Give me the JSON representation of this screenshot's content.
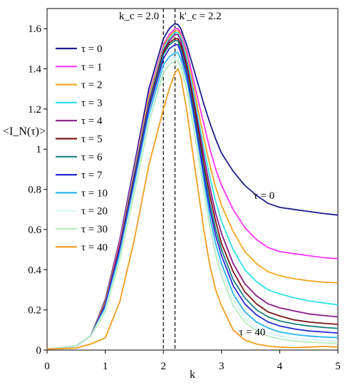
{
  "chart_data": {
    "type": "line",
    "xlabel": "k",
    "ylabel": "<I_N(τ)>",
    "xlim": [
      0,
      5
    ],
    "ylim": [
      0,
      1.7
    ],
    "x_ticks": [
      "0",
      "1",
      "2",
      "3",
      "4",
      "5"
    ],
    "y_ticks": [
      "0",
      "0.2",
      "0.4",
      "0.6",
      "0.8",
      "1",
      "1.2",
      "1.4",
      "1.6"
    ],
    "grid": false,
    "legend_position": "top-left",
    "vlines": [
      {
        "x": 2.0,
        "label": "k_c = 2.0"
      },
      {
        "x": 2.2,
        "label": "k'_c = 2.2"
      }
    ],
    "annotations": [
      {
        "text": "τ = 0",
        "x": 3.55,
        "y": 0.77
      },
      {
        "text": "τ = 40",
        "x": 3.3,
        "y": 0.09
      }
    ],
    "x": [
      0,
      0.5,
      0.75,
      1.0,
      1.25,
      1.5,
      1.75,
      2.0,
      2.1,
      2.2,
      2.25,
      2.3,
      2.4,
      2.5,
      2.6,
      2.7,
      2.8,
      2.9,
      3.0,
      3.2,
      3.4,
      3.6,
      3.8,
      4.0,
      4.25,
      4.5,
      4.75,
      5.0
    ],
    "series": [
      {
        "name": "τ = 0",
        "color": "#1c1c8c",
        "values": [
          0.005,
          0.02,
          0.07,
          0.25,
          0.55,
          0.92,
          1.3,
          1.55,
          1.6,
          1.625,
          1.62,
          1.6,
          1.52,
          1.42,
          1.32,
          1.22,
          1.13,
          1.05,
          0.98,
          0.89,
          0.82,
          0.77,
          0.73,
          0.71,
          0.7,
          0.69,
          0.68,
          0.672
        ]
      },
      {
        "name": "τ = 1",
        "color": "#ff33ff",
        "values": [
          0.005,
          0.02,
          0.07,
          0.24,
          0.54,
          0.9,
          1.27,
          1.52,
          1.57,
          1.6,
          1.6,
          1.58,
          1.49,
          1.37,
          1.24,
          1.12,
          1.0,
          0.9,
          0.82,
          0.7,
          0.61,
          0.55,
          0.51,
          0.49,
          0.48,
          0.47,
          0.46,
          0.455
        ]
      },
      {
        "name": "τ = 2",
        "color": "#f5a623",
        "values": [
          0.005,
          0.02,
          0.07,
          0.24,
          0.53,
          0.89,
          1.26,
          1.51,
          1.56,
          1.59,
          1.59,
          1.57,
          1.47,
          1.34,
          1.19,
          1.05,
          0.92,
          0.81,
          0.72,
          0.59,
          0.49,
          0.43,
          0.39,
          0.37,
          0.355,
          0.345,
          0.338,
          0.335
        ]
      },
      {
        "name": "τ = 3",
        "color": "#33e0e8",
        "values": [
          0.005,
          0.02,
          0.07,
          0.23,
          0.52,
          0.88,
          1.24,
          1.5,
          1.55,
          1.58,
          1.58,
          1.56,
          1.45,
          1.31,
          1.15,
          1.0,
          0.86,
          0.74,
          0.64,
          0.5,
          0.4,
          0.34,
          0.3,
          0.28,
          0.26,
          0.245,
          0.235,
          0.225
        ]
      },
      {
        "name": "τ = 4",
        "color": "#8b1a8b",
        "values": [
          0.005,
          0.02,
          0.07,
          0.23,
          0.52,
          0.87,
          1.23,
          1.49,
          1.54,
          1.57,
          1.57,
          1.54,
          1.43,
          1.28,
          1.12,
          0.96,
          0.81,
          0.68,
          0.58,
          0.43,
          0.33,
          0.27,
          0.23,
          0.21,
          0.195,
          0.18,
          0.172,
          0.165
        ]
      },
      {
        "name": "τ = 5",
        "color": "#7a1414",
        "values": [
          0.005,
          0.02,
          0.07,
          0.22,
          0.51,
          0.86,
          1.22,
          1.48,
          1.53,
          1.55,
          1.55,
          1.52,
          1.41,
          1.26,
          1.09,
          0.92,
          0.77,
          0.64,
          0.53,
          0.39,
          0.29,
          0.23,
          0.19,
          0.17,
          0.15,
          0.14,
          0.133,
          0.128
        ]
      },
      {
        "name": "τ = 6",
        "color": "#1a8080",
        "values": [
          0.005,
          0.02,
          0.07,
          0.22,
          0.5,
          0.85,
          1.21,
          1.47,
          1.52,
          1.54,
          1.54,
          1.5,
          1.39,
          1.23,
          1.06,
          0.89,
          0.73,
          0.6,
          0.5,
          0.35,
          0.26,
          0.2,
          0.165,
          0.145,
          0.13,
          0.12,
          0.113,
          0.108
        ]
      },
      {
        "name": "τ = 7",
        "color": "#2a2ad6",
        "values": [
          0.005,
          0.02,
          0.07,
          0.22,
          0.5,
          0.84,
          1.2,
          1.45,
          1.5,
          1.52,
          1.52,
          1.48,
          1.37,
          1.21,
          1.04,
          0.86,
          0.7,
          0.57,
          0.47,
          0.32,
          0.23,
          0.175,
          0.14,
          0.12,
          0.105,
          0.095,
          0.09,
          0.085
        ]
      },
      {
        "name": "τ = 10",
        "color": "#29b6ef",
        "values": [
          0.005,
          0.02,
          0.07,
          0.21,
          0.48,
          0.82,
          1.17,
          1.42,
          1.46,
          1.48,
          1.48,
          1.45,
          1.34,
          1.18,
          1.0,
          0.83,
          0.66,
          0.53,
          0.43,
          0.28,
          0.19,
          0.14,
          0.11,
          0.09,
          0.078,
          0.07,
          0.065,
          0.062
        ]
      },
      {
        "name": "τ = 20",
        "color": "#d9f2f7",
        "values": [
          0.005,
          0.02,
          0.07,
          0.2,
          0.46,
          0.8,
          1.15,
          1.4,
          1.44,
          1.46,
          1.46,
          1.43,
          1.32,
          1.16,
          0.98,
          0.8,
          0.63,
          0.5,
          0.4,
          0.25,
          0.16,
          0.11,
          0.085,
          0.07,
          0.06,
          0.052,
          0.048,
          0.045
        ]
      },
      {
        "name": "τ = 30",
        "color": "#b8ecc0",
        "values": [
          0.005,
          0.02,
          0.07,
          0.19,
          0.45,
          0.78,
          1.13,
          1.38,
          1.42,
          1.44,
          1.44,
          1.41,
          1.3,
          1.14,
          0.96,
          0.78,
          0.61,
          0.47,
          0.37,
          0.22,
          0.14,
          0.095,
          0.07,
          0.055,
          0.045,
          0.04,
          0.036,
          0.034
        ]
      },
      {
        "name": "τ = 40",
        "color": "#f39c1f",
        "values": [
          0.005,
          0.01,
          0.03,
          0.06,
          0.24,
          0.55,
          0.92,
          1.2,
          1.3,
          1.38,
          1.4,
          1.36,
          1.2,
          0.99,
          0.79,
          0.59,
          0.42,
          0.3,
          0.22,
          0.1,
          0.05,
          0.03,
          0.02,
          0.015,
          0.012,
          0.015,
          0.018,
          0.015
        ]
      }
    ]
  }
}
